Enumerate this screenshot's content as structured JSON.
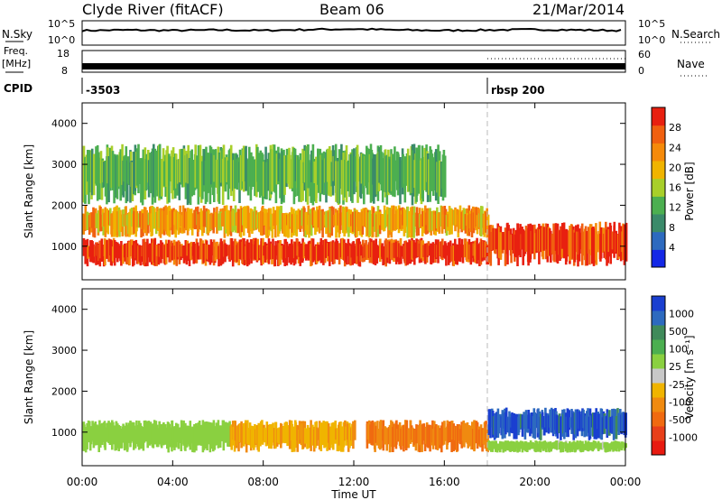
{
  "header": {
    "station": "Clyde River (fitACF)",
    "beam": "Beam 06",
    "date": "21/Mar/2014"
  },
  "side_labels": {
    "nsky": "N.Sky",
    "freq_top": "Freq.",
    "freq_unit": "[MHz]",
    "cpid": "CPID",
    "nsearch": "N.Search",
    "nave": "Nave"
  },
  "ticks": {
    "noise_left": [
      "10^5",
      "10^0"
    ],
    "noise_right": [
      "10^5",
      "10^0"
    ],
    "freq_left": [
      "18",
      "8"
    ],
    "nave_right": [
      "60",
      "0"
    ],
    "range": [
      "1000",
      "2000",
      "3000",
      "4000"
    ],
    "time": [
      "00:00",
      "04:00",
      "08:00",
      "12:00",
      "16:00",
      "20:00",
      "00:00"
    ]
  },
  "axes": {
    "ylabel": "Slant Range [km]",
    "xlabel": "Time UT"
  },
  "cpid_segments": [
    {
      "label": "-3503",
      "start_hour": 0.0
    },
    {
      "label": "rbsp 200",
      "start_hour": 17.9
    }
  ],
  "power_colorbar": {
    "label": "Power [dB]",
    "ticks": [
      "4",
      "8",
      "12",
      "16",
      "20",
      "24",
      "28"
    ],
    "colors": [
      "#1428e6",
      "#2d6abf",
      "#3a8a6a",
      "#4caf50",
      "#a8cf2a",
      "#f0b400",
      "#f58a0a",
      "#f06010",
      "#e82010"
    ]
  },
  "velocity_colorbar": {
    "label": "Velocity [m s⁻¹]",
    "ticks": [
      "1000",
      "500",
      "100",
      "25",
      "-25",
      "-100",
      "-500",
      "-1000"
    ],
    "colors": [
      "#1a3fd0",
      "#2d6abf",
      "#3f8a5a",
      "#4caf50",
      "#8ad040",
      "#c8c8c8",
      "#f0b400",
      "#f08a10",
      "#f06a10",
      "#e8401a",
      "#e81a10"
    ]
  },
  "chart_data": [
    {
      "type": "line",
      "name": "Noise",
      "title": "",
      "xlabel": "Time UT",
      "ylabel": "N.Sky",
      "xlim": [
        0,
        24
      ],
      "ylim": [
        0,
        5
      ],
      "yscale": "log10",
      "x": [
        0,
        2,
        4,
        6,
        8,
        10,
        12,
        14,
        16,
        18,
        20,
        22,
        24
      ],
      "values": [
        3.0,
        3.1,
        3.0,
        3.1,
        3.0,
        3.2,
        3.3,
        3.1,
        3.0,
        3.1,
        3.2,
        3.1,
        3.0
      ]
    },
    {
      "type": "line",
      "name": "Frequency",
      "title": "",
      "ylabel": "Freq. [MHz]",
      "xlim": [
        0,
        24
      ],
      "ylim": [
        8,
        18
      ],
      "x": [
        0,
        17.9,
        17.9,
        24
      ],
      "values": [
        10.5,
        10.5,
        10.5,
        10.5
      ]
    },
    {
      "type": "heatmap",
      "title": "Power",
      "xlabel": "Time UT",
      "ylabel": "Slant Range [km]",
      "xlim": [
        0,
        24
      ],
      "ylim": [
        180,
        4500
      ],
      "colorbar_label": "Power [dB]",
      "colorbar_range": [
        0,
        30
      ],
      "regions": [
        {
          "t_start": 0.0,
          "t_end": 17.9,
          "r_min": 500,
          "r_max": 1200,
          "value": 28
        },
        {
          "t_start": 0.0,
          "t_end": 17.9,
          "r_min": 1200,
          "r_max": 2000,
          "value": 20
        },
        {
          "t_start": 0.0,
          "t_end": 16.0,
          "r_min": 2000,
          "r_max": 3500,
          "value": 12
        },
        {
          "t_start": 17.9,
          "t_end": 24.0,
          "r_min": 500,
          "r_max": 1600,
          "value": 28
        }
      ]
    },
    {
      "type": "heatmap",
      "title": "Velocity",
      "xlabel": "Time UT",
      "ylabel": "Slant Range [km]",
      "xlim": [
        0,
        24
      ],
      "ylim": [
        180,
        4500
      ],
      "colorbar_label": "Velocity [m s⁻¹]",
      "colorbar_range": [
        -1000,
        1000
      ],
      "regions": [
        {
          "t_start": 0.0,
          "t_end": 6.5,
          "r_min": 500,
          "r_max": 1300,
          "value": 150
        },
        {
          "t_start": 6.5,
          "t_end": 12.0,
          "r_min": 500,
          "r_max": 1300,
          "value": -250
        },
        {
          "t_start": 12.5,
          "t_end": 17.9,
          "r_min": 500,
          "r_max": 1300,
          "value": -450
        },
        {
          "t_start": 17.9,
          "t_end": 24.0,
          "r_min": 800,
          "r_max": 1600,
          "value": 800
        },
        {
          "t_start": 17.9,
          "t_end": 24.0,
          "r_min": 500,
          "r_max": 800,
          "value": 120
        }
      ]
    }
  ]
}
